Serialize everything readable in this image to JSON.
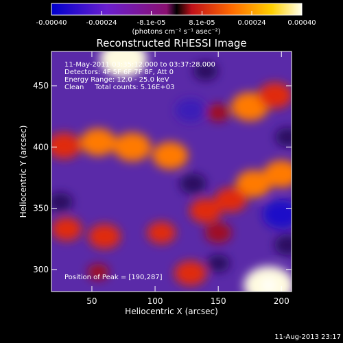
{
  "chart_data": {
    "type": "heatmap",
    "title": "Reconstructed RHESSI Image",
    "xlabel": "Heliocentric X (arcsec)",
    "ylabel": "Heliocentric Y (arcsec)",
    "xlim": [
      18,
      208
    ],
    "ylim": [
      282,
      478
    ],
    "x_ticks": [
      50,
      100,
      150,
      200
    ],
    "y_ticks": [
      300,
      350,
      400,
      450
    ],
    "colorbar": {
      "range": [
        -0.0004,
        0.0004
      ],
      "tick_values": [
        -0.0004,
        -0.00024,
        -8.1e-05,
        8.1e-05,
        0.00024,
        0.0004
      ],
      "tick_labels": [
        "-0.00040",
        "-0.00024",
        "-8.1e-05",
        "8.1e-05",
        "0.00024",
        "0.00040"
      ],
      "units": "(photons cm⁻² s⁻¹ asec⁻²)",
      "colors": [
        "#0000cc",
        "#7a1fcf",
        "#c01a3a",
        "#ff5a00",
        "#ffd000",
        "#ffffe6"
      ]
    },
    "annotations": [
      "11-May-2011 03:35:12.000 to 03:37:28.000",
      "Detectors: 4F 5F 6F 7F 8F, Att 0",
      "Energy Range: 12.0 - 25.0 keV",
      "Clean     Total counts: 5.16E+03"
    ],
    "peak_label": "Position of Peak = [190,287]",
    "peak": [
      190,
      287
    ],
    "blobs": [
      {
        "x": 75,
        "y": 472,
        "value": 0.00037
      },
      {
        "x": 190,
        "y": 287,
        "value": 0.0004
      },
      {
        "x": 175,
        "y": 433,
        "value": 0.00026
      },
      {
        "x": 195,
        "y": 442,
        "value": 0.00022
      },
      {
        "x": 150,
        "y": 428,
        "value": 0.0001
      },
      {
        "x": 28,
        "y": 401,
        "value": 0.00022
      },
      {
        "x": 55,
        "y": 404,
        "value": 0.00024
      },
      {
        "x": 82,
        "y": 400,
        "value": 0.00026
      },
      {
        "x": 112,
        "y": 393,
        "value": 0.00024
      },
      {
        "x": 200,
        "y": 378,
        "value": 0.00024
      },
      {
        "x": 178,
        "y": 370,
        "value": 0.00024
      },
      {
        "x": 160,
        "y": 357,
        "value": 0.0002
      },
      {
        "x": 140,
        "y": 348,
        "value": 0.0002
      },
      {
        "x": 30,
        "y": 333,
        "value": 0.00018
      },
      {
        "x": 60,
        "y": 327,
        "value": 0.0002
      },
      {
        "x": 105,
        "y": 330,
        "value": 0.00016
      },
      {
        "x": 150,
        "y": 330,
        "value": 0.00014
      },
      {
        "x": 128,
        "y": 297,
        "value": 0.0002
      },
      {
        "x": 55,
        "y": 298,
        "value": 8e-05
      },
      {
        "x": 140,
        "y": 462,
        "value": -0.00012
      },
      {
        "x": 128,
        "y": 430,
        "value": -0.00018
      },
      {
        "x": 205,
        "y": 408,
        "value": -0.00012
      },
      {
        "x": 200,
        "y": 345,
        "value": -0.00026
      },
      {
        "x": 150,
        "y": 305,
        "value": -0.0001
      },
      {
        "x": 130,
        "y": 370,
        "value": -0.00014
      },
      {
        "x": 25,
        "y": 355,
        "value": -0.00012
      },
      {
        "x": 205,
        "y": 320,
        "value": -0.00014
      }
    ]
  },
  "timestamp": "11-Aug-2013 23:17"
}
